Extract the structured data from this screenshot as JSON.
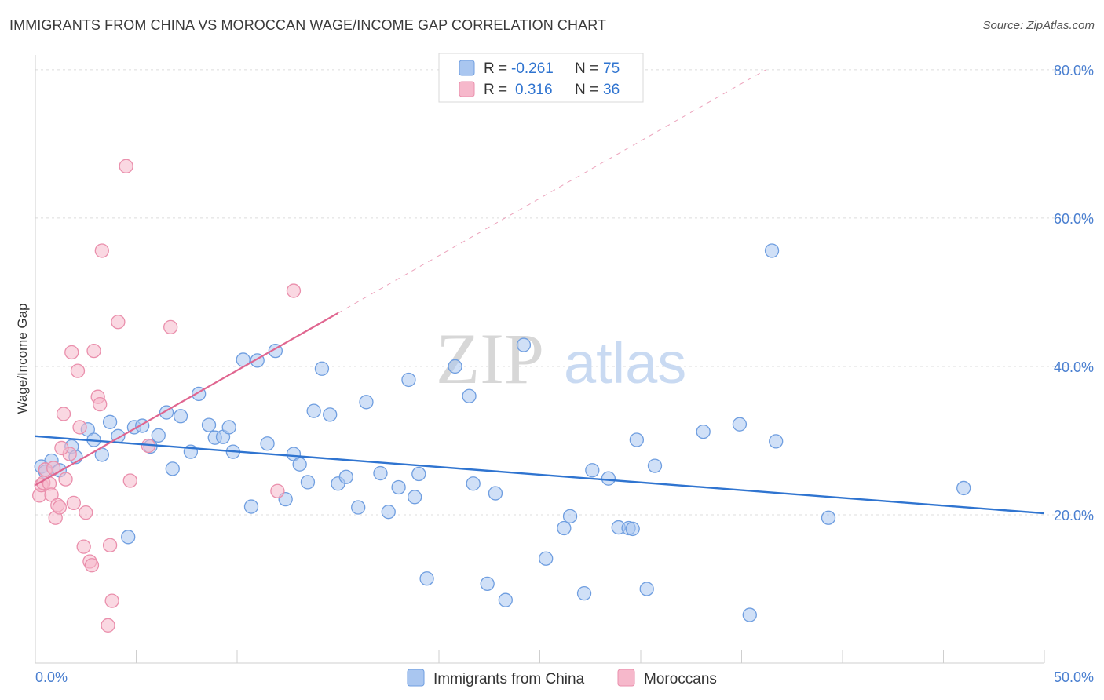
{
  "header": {
    "title": "IMMIGRANTS FROM CHINA VS MOROCCAN WAGE/INCOME GAP CORRELATION CHART",
    "source": "Source: ZipAtlas.com"
  },
  "watermark": {
    "zip": "ZIP",
    "atlas": "atlas"
  },
  "colors": {
    "blue_fill": "#a9c6f0",
    "blue_stroke": "#6f9ee0",
    "blue_line": "#2f74d0",
    "pink_fill": "#f6b8cb",
    "pink_stroke": "#ea8fac",
    "pink_line": "#e06690",
    "grid": "#dcdcdc",
    "tick_text": "#4a7fd0"
  },
  "legend": {
    "rows": [
      {
        "r_label": "R =",
        "r_value": "-0.261",
        "n_label": "N =",
        "n_value": "75"
      },
      {
        "r_label": "R =",
        "r_value": " 0.316",
        "n_label": "N =",
        "n_value": "36"
      }
    ]
  },
  "chart_data": {
    "type": "scatter",
    "title": "IMMIGRANTS FROM CHINA VS MOROCCAN WAGE/INCOME GAP CORRELATION CHART",
    "xlabel": "",
    "ylabel": "Wage/Income Gap",
    "xlim": [
      0,
      50
    ],
    "ylim": [
      0,
      82
    ],
    "x_tick_labels": [
      "0.0%",
      "50.0%"
    ],
    "y_ticks": [
      20,
      40,
      60,
      80
    ],
    "y_tick_labels": [
      "20.0%",
      "40.0%",
      "60.0%",
      "80.0%"
    ],
    "grid": true,
    "legend_position": "top-center",
    "series": [
      {
        "name": "Immigrants from China",
        "r": -0.261,
        "n": 75,
        "trend": {
          "x0": 0,
          "y0": 30.6,
          "x1": 50,
          "y1": 20.2
        },
        "points": [
          [
            0.3,
            26.5
          ],
          [
            0.5,
            25.8
          ],
          [
            0.8,
            27.3
          ],
          [
            1.2,
            26.0
          ],
          [
            1.8,
            29.2
          ],
          [
            2.0,
            27.8
          ],
          [
            2.6,
            31.5
          ],
          [
            2.9,
            30.1
          ],
          [
            3.3,
            28.1
          ],
          [
            3.7,
            32.5
          ],
          [
            4.1,
            30.6
          ],
          [
            4.6,
            17.0
          ],
          [
            4.9,
            31.8
          ],
          [
            5.3,
            32.0
          ],
          [
            5.7,
            29.2
          ],
          [
            6.1,
            30.7
          ],
          [
            6.5,
            33.8
          ],
          [
            6.8,
            26.2
          ],
          [
            7.2,
            33.3
          ],
          [
            7.7,
            28.5
          ],
          [
            8.1,
            36.3
          ],
          [
            8.6,
            32.1
          ],
          [
            8.9,
            30.4
          ],
          [
            9.3,
            30.5
          ],
          [
            9.6,
            31.8
          ],
          [
            9.8,
            28.5
          ],
          [
            10.3,
            40.9
          ],
          [
            10.7,
            21.1
          ],
          [
            11.0,
            40.8
          ],
          [
            11.5,
            29.6
          ],
          [
            11.9,
            42.1
          ],
          [
            12.4,
            22.1
          ],
          [
            12.8,
            28.2
          ],
          [
            13.1,
            26.8
          ],
          [
            13.5,
            24.4
          ],
          [
            13.8,
            34.0
          ],
          [
            14.2,
            39.7
          ],
          [
            14.6,
            33.5
          ],
          [
            15.0,
            24.2
          ],
          [
            15.4,
            25.1
          ],
          [
            16.0,
            21.0
          ],
          [
            16.4,
            35.2
          ],
          [
            17.1,
            25.6
          ],
          [
            17.5,
            20.4
          ],
          [
            18.0,
            23.7
          ],
          [
            18.5,
            38.2
          ],
          [
            18.8,
            22.4
          ],
          [
            19.0,
            25.5
          ],
          [
            19.4,
            11.4
          ],
          [
            20.8,
            40.0
          ],
          [
            21.5,
            36.0
          ],
          [
            21.7,
            24.2
          ],
          [
            22.4,
            10.7
          ],
          [
            22.8,
            22.9
          ],
          [
            23.3,
            8.5
          ],
          [
            24.2,
            42.9
          ],
          [
            25.3,
            14.1
          ],
          [
            26.2,
            18.2
          ],
          [
            26.5,
            19.8
          ],
          [
            27.2,
            9.4
          ],
          [
            27.6,
            26.0
          ],
          [
            28.4,
            24.9
          ],
          [
            28.9,
            18.3
          ],
          [
            29.4,
            18.2
          ],
          [
            29.6,
            18.1
          ],
          [
            29.8,
            30.1
          ],
          [
            30.3,
            10.0
          ],
          [
            30.7,
            26.6
          ],
          [
            33.1,
            31.2
          ],
          [
            34.9,
            32.2
          ],
          [
            35.4,
            6.5
          ],
          [
            36.5,
            55.6
          ],
          [
            36.7,
            29.9
          ],
          [
            39.3,
            19.6
          ],
          [
            46.0,
            23.6
          ]
        ]
      },
      {
        "name": "Moroccans",
        "r": 0.316,
        "n": 36,
        "trend": {
          "x0": 0,
          "y0": 24.0,
          "x1": 15,
          "y1": 47.2
        },
        "trend_ext": {
          "x0": 15,
          "y0": 47.2,
          "x1": 36.2,
          "y1": 80.0
        },
        "points": [
          [
            0.2,
            22.6
          ],
          [
            0.3,
            24.0
          ],
          [
            0.4,
            24.3
          ],
          [
            0.5,
            26.1
          ],
          [
            0.7,
            24.2
          ],
          [
            0.8,
            22.7
          ],
          [
            1.0,
            19.6
          ],
          [
            1.1,
            21.3
          ],
          [
            1.2,
            21.0
          ],
          [
            1.4,
            33.6
          ],
          [
            1.5,
            24.8
          ],
          [
            1.7,
            28.2
          ],
          [
            1.8,
            41.9
          ],
          [
            1.9,
            21.6
          ],
          [
            2.1,
            39.4
          ],
          [
            2.2,
            31.8
          ],
          [
            2.4,
            15.7
          ],
          [
            2.5,
            20.3
          ],
          [
            2.7,
            13.7
          ],
          [
            2.8,
            13.2
          ],
          [
            2.9,
            42.1
          ],
          [
            3.1,
            35.9
          ],
          [
            3.2,
            34.9
          ],
          [
            3.3,
            55.6
          ],
          [
            3.7,
            15.9
          ],
          [
            3.8,
            8.4
          ],
          [
            3.6,
            5.1
          ],
          [
            4.1,
            46.0
          ],
          [
            4.5,
            67.0
          ],
          [
            4.7,
            24.6
          ],
          [
            5.6,
            29.3
          ],
          [
            6.7,
            45.3
          ],
          [
            12.0,
            23.2
          ],
          [
            12.8,
            50.2
          ],
          [
            1.3,
            29.0
          ],
          [
            0.9,
            26.3
          ]
        ]
      }
    ]
  },
  "bottom_legend": {
    "items": [
      {
        "label": "Immigrants from China"
      },
      {
        "label": "Moroccans"
      }
    ]
  }
}
